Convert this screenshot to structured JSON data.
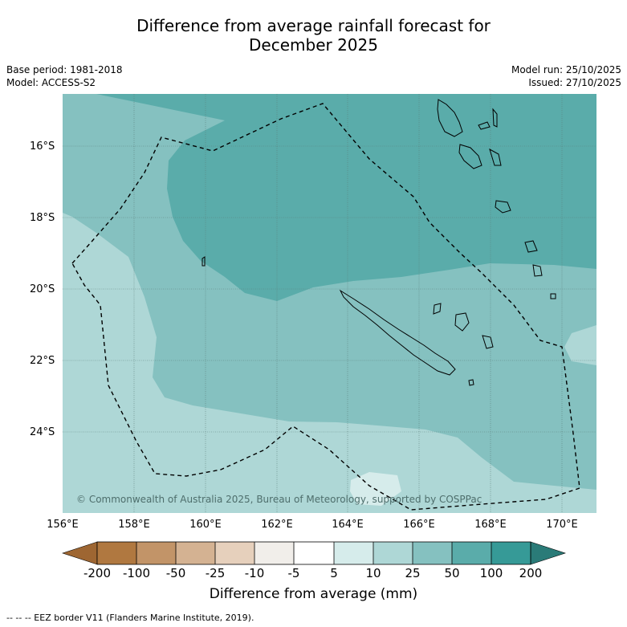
{
  "title_line1": "Difference from average rainfall forecast for",
  "title_line2": "December 2025",
  "meta_left": [
    "Base period: 1981-2018",
    "Model: ACCESS-S2"
  ],
  "meta_right": [
    "Model run: 25/10/2025",
    "Issued: 27/10/2025"
  ],
  "map": {
    "lat_labels": [
      "16°S",
      "18°S",
      "20°S",
      "22°S",
      "24°S"
    ],
    "lon_labels": [
      "156°E",
      "158°E",
      "160°E",
      "162°E",
      "164°E",
      "166°E",
      "168°E",
      "170°E"
    ],
    "copyright": "© Commonwealth of Australia 2025, Bureau of Meteorology, supported by COSPPac"
  },
  "colorbar": {
    "title": "Difference from average (mm)",
    "labels": [
      "-200",
      "-100",
      "-50",
      "-25",
      "-10",
      "-5",
      "5",
      "10",
      "25",
      "50",
      "100",
      "200"
    ],
    "colors": [
      "#9e6632",
      "#b07840",
      "#c29468",
      "#d4b292",
      "#e6d0bc",
      "#f1eeea",
      "#ffffff",
      "#d6eceb",
      "#aed7d6",
      "#85c1c0",
      "#5aacaa",
      "#369a97",
      "#2a7b78"
    ]
  },
  "footer": "--  --  -- EEZ border V11 (Flanders Marine Institute, 2019)."
}
